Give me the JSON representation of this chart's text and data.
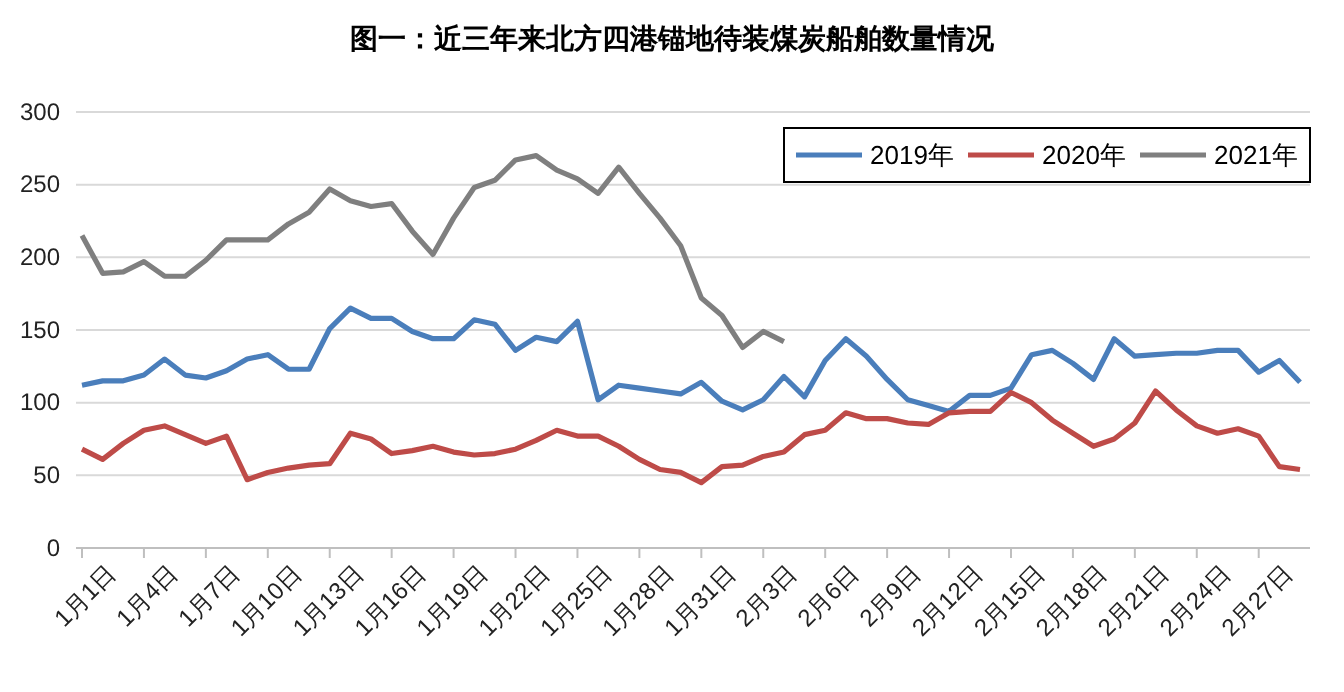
{
  "chart_data": {
    "type": "line",
    "title": "图一：近三年来北方四港锚地待装煤炭船舶数量情况",
    "categories": [
      "1月1日",
      null,
      null,
      "1月4日",
      null,
      null,
      "1月7日",
      null,
      null,
      "1月10日",
      null,
      null,
      "1月13日",
      null,
      null,
      "1月16日",
      null,
      null,
      "1月19日",
      null,
      null,
      "1月22日",
      null,
      null,
      "1月25日",
      null,
      null,
      "1月28日",
      null,
      null,
      "1月31日",
      null,
      null,
      "2月3日",
      null,
      null,
      "2月6日",
      null,
      null,
      "2月9日",
      null,
      null,
      "2月12日",
      null,
      null,
      "2月15日",
      null,
      null,
      "2月18日",
      null,
      null,
      "2月21日",
      null,
      null,
      "2月24日",
      null,
      null,
      "2月27日",
      null,
      null
    ],
    "series": [
      {
        "name": "2019年",
        "color": "#4a7ebb",
        "values": [
          112,
          115,
          115,
          119,
          130,
          119,
          117,
          122,
          130,
          133,
          123,
          123,
          151,
          165,
          158,
          158,
          149,
          144,
          144,
          157,
          154,
          136,
          145,
          142,
          156,
          102,
          112,
          110,
          108,
          106,
          114,
          101,
          95,
          102,
          118,
          104,
          129,
          144,
          132,
          116,
          102,
          98,
          94,
          105,
          105,
          110,
          133,
          136,
          127,
          116,
          144,
          132,
          133,
          134,
          134,
          136,
          136,
          121,
          129,
          114
        ]
      },
      {
        "name": "2020年",
        "color": "#be4b48",
        "values": [
          68,
          61,
          72,
          81,
          84,
          78,
          72,
          77,
          47,
          52,
          55,
          57,
          58,
          79,
          75,
          65,
          67,
          70,
          66,
          64,
          65,
          68,
          74,
          81,
          77,
          77,
          70,
          61,
          54,
          52,
          45,
          56,
          57,
          63,
          66,
          78,
          81,
          93,
          89,
          89,
          86,
          85,
          93,
          94,
          94,
          107,
          100,
          88,
          79,
          70,
          75,
          86,
          108,
          95,
          84,
          79,
          82,
          77,
          56,
          54
        ]
      },
      {
        "name": "2021年",
        "color": "#7f7f7f",
        "values": [
          215,
          189,
          190,
          197,
          187,
          187,
          198,
          212,
          212,
          212,
          223,
          231,
          247,
          239,
          235,
          237,
          218,
          202,
          227,
          248,
          253,
          267,
          270,
          260,
          254,
          244,
          262,
          244,
          227,
          208,
          172,
          160,
          138,
          149,
          142,
          null,
          null,
          null,
          null,
          null,
          null,
          null,
          null,
          null,
          null,
          null,
          null,
          null,
          null,
          null,
          null,
          null,
          null,
          null,
          null,
          null,
          null,
          null,
          null,
          null
        ]
      }
    ],
    "ylim": [
      0,
      300
    ],
    "yticks": [
      0,
      50,
      100,
      150,
      200,
      250,
      300
    ],
    "grid": "y",
    "legend": "top right",
    "marker": "none",
    "line_style": "solid"
  }
}
